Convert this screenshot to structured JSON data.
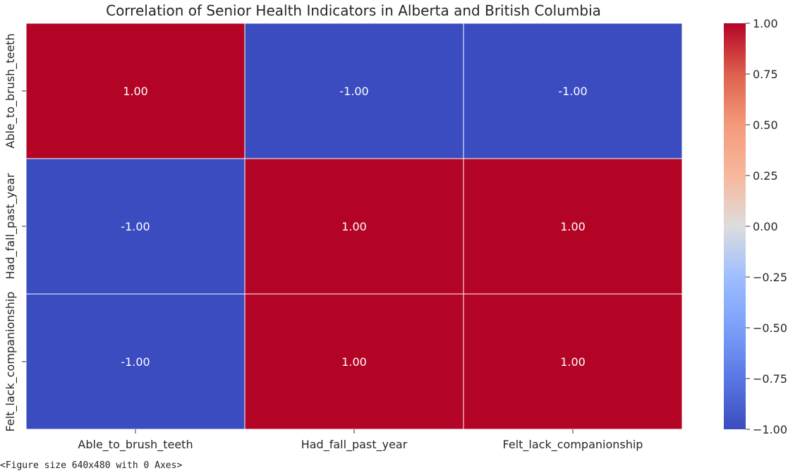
{
  "chart_data": {
    "type": "heatmap",
    "title": "Correlation of Senior Health Indicators in Alberta and British Columbia",
    "x_categories": [
      "Able_to_brush_teeth",
      "Had_fall_past_year",
      "Felt_lack_companionship"
    ],
    "y_categories": [
      "Able_to_brush_teeth",
      "Had_fall_past_year",
      "Felt_lack_companionship"
    ],
    "values": [
      [
        1.0,
        -1.0,
        -1.0
      ],
      [
        -1.0,
        1.0,
        1.0
      ],
      [
        -1.0,
        1.0,
        1.0
      ]
    ],
    "cell_labels": [
      [
        "1.00",
        "-1.00",
        "-1.00"
      ],
      [
        "-1.00",
        "1.00",
        "1.00"
      ],
      [
        "-1.00",
        "1.00",
        "1.00"
      ]
    ],
    "colormap": "coolwarm",
    "vmin": -1.0,
    "vmax": 1.0,
    "colorbar_ticks": [
      1.0,
      0.75,
      0.5,
      0.25,
      0.0,
      -0.25,
      -0.5,
      -0.75,
      -1.0
    ],
    "colorbar_tick_labels": [
      "1.00",
      "0.75",
      "0.50",
      "0.25",
      "0.00",
      "−0.25",
      "−0.50",
      "−0.75",
      "−1.00"
    ],
    "colors": {
      "low": "#3b4cc0",
      "mid": "#dddddd",
      "high": "#b40426",
      "annotation_text": "#ffffff"
    }
  },
  "footer_text": "<Figure size 640x480 with 0 Axes>"
}
